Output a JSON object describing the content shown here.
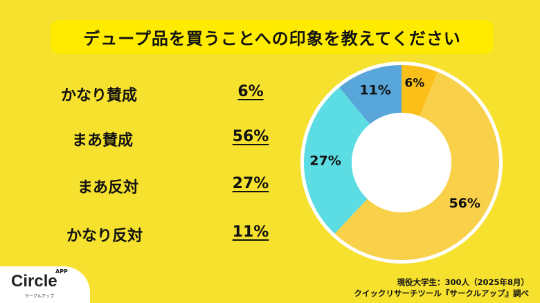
{
  "chart_data": {
    "type": "pie",
    "title": "デュープ品を買うことへの印象を教えてください",
    "categories": [
      "かなり賛成",
      "まあ賛成",
      "まあ反対",
      "かなり反対"
    ],
    "values": [
      6,
      56,
      27,
      11
    ],
    "labels": [
      "6%",
      "56%",
      "27%",
      "11%"
    ],
    "colors": [
      "#FBBF1A",
      "#F9D04A",
      "#5CDDE3",
      "#58A6DA"
    ],
    "donut": true
  },
  "source": {
    "line1": "現役大学生：300人（2025年8月）",
    "line2": "クイックリサーチツール『サークルアップ』調べ"
  },
  "logo": {
    "main": "Circle",
    "app": "APP",
    "sub": "サークルアップ"
  }
}
